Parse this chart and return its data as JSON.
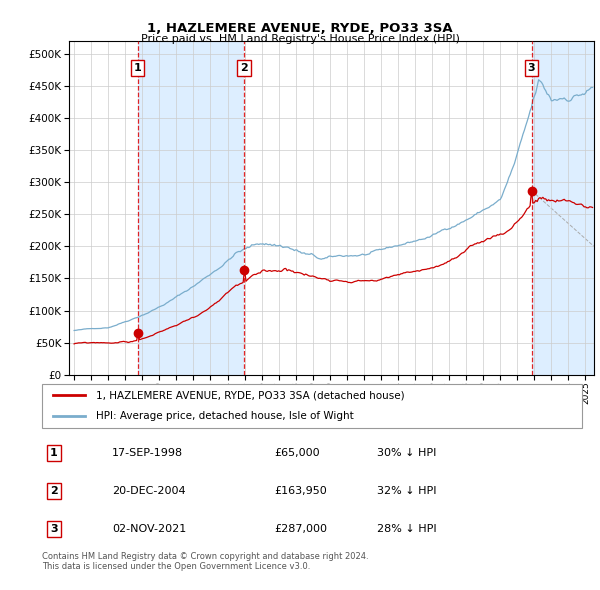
{
  "title": "1, HAZLEMERE AVENUE, RYDE, PO33 3SA",
  "subtitle": "Price paid vs. HM Land Registry's House Price Index (HPI)",
  "ylim": [
    0,
    520000
  ],
  "yticks": [
    0,
    50000,
    100000,
    150000,
    200000,
    250000,
    300000,
    350000,
    400000,
    450000,
    500000
  ],
  "xlim_start": 1994.7,
  "xlim_end": 2025.5,
  "sales": [
    {
      "date_dec": 1998.72,
      "price": 65000,
      "label": "1"
    },
    {
      "date_dec": 2004.97,
      "price": 163950,
      "label": "2"
    },
    {
      "date_dec": 2021.84,
      "price": 287000,
      "label": "3"
    }
  ],
  "vline_color": "#dd0000",
  "sale_marker_color": "#cc0000",
  "hpi_line_color": "#7aadcc",
  "price_line_color": "#cc0000",
  "shade_color": "#ddeeff",
  "legend_entries": [
    "1, HAZLEMERE AVENUE, RYDE, PO33 3SA (detached house)",
    "HPI: Average price, detached house, Isle of Wight"
  ],
  "table_rows": [
    {
      "num": "1",
      "date": "17-SEP-1998",
      "price": "£65,000",
      "hpi": "30% ↓ HPI"
    },
    {
      "num": "2",
      "date": "20-DEC-2004",
      "price": "£163,950",
      "hpi": "32% ↓ HPI"
    },
    {
      "num": "3",
      "date": "02-NOV-2021",
      "price": "£287,000",
      "hpi": "28% ↓ HPI"
    }
  ],
  "footer": "Contains HM Land Registry data © Crown copyright and database right 2024.\nThis data is licensed under the Open Government Licence v3.0.",
  "background_color": "#ddeeff",
  "plot_bg_color": "#ffffff"
}
